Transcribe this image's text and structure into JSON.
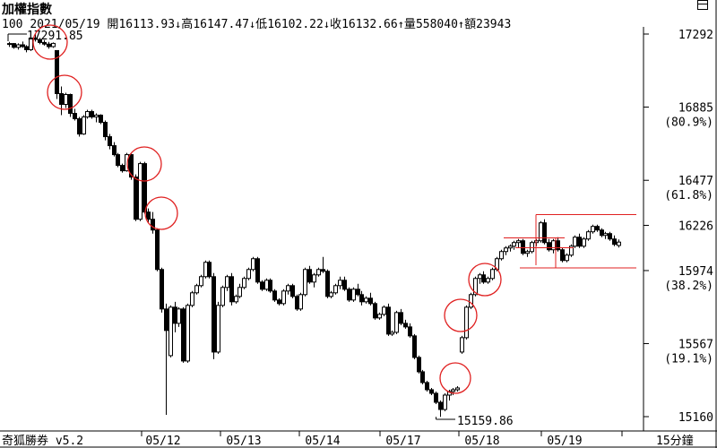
{
  "header": {
    "title": "加權指數",
    "code": "100",
    "date": "2021/05/19",
    "open_label": "開",
    "open_value": "16113.93",
    "high_label": "高",
    "high_value": "16147.47",
    "low_label": "低",
    "low_value": "16102.22",
    "close_label": "收",
    "close_value": "16132.66",
    "volume_label": "量",
    "volume_value": "558040",
    "amount_label": "額",
    "amount_value": "23943"
  },
  "footer": {
    "brand": "奇狐勝券 v5.2",
    "interval": "15分鐘"
  },
  "chart_data": {
    "type": "candlestick",
    "title": "加權指數",
    "ylim": [
      15160,
      17292
    ],
    "y_ticks": [
      {
        "value": 17292,
        "label": "17292",
        "pct": ""
      },
      {
        "value": 16885,
        "label": "16885",
        "pct": "(80.9%)"
      },
      {
        "value": 16477,
        "label": "16477",
        "pct": "(61.8%)"
      },
      {
        "value": 16226,
        "label": "16226",
        "pct": ""
      },
      {
        "value": 15974,
        "label": "15974",
        "pct": "(38.2%)"
      },
      {
        "value": 15567,
        "label": "15567",
        "pct": "(19.1%)"
      },
      {
        "value": 15160,
        "label": "15160",
        "pct": ""
      }
    ],
    "x_labels": [
      "05/12",
      "05/13",
      "05/14",
      "05/17",
      "05/18",
      "05/19"
    ],
    "annotations": [
      {
        "text": "17291.85",
        "type": "high"
      },
      {
        "text": "15159.86",
        "type": "low"
      }
    ],
    "resistance_band": [
      16226,
      15974
    ],
    "candles": [
      [
        17236,
        17248,
        17220,
        17239
      ],
      [
        17239,
        17242,
        17210,
        17218
      ],
      [
        17218,
        17240,
        17205,
        17232
      ],
      [
        17232,
        17250,
        17215,
        17222
      ],
      [
        17222,
        17230,
        17190,
        17205
      ],
      [
        17205,
        17275,
        17198,
        17270
      ],
      [
        17270,
        17292,
        17250,
        17262
      ],
      [
        17262,
        17270,
        17235,
        17245
      ],
      [
        17245,
        17258,
        17228,
        17236
      ],
      [
        17236,
        17248,
        17210,
        17222
      ],
      [
        17222,
        17245,
        17215,
        17240
      ],
      [
        17200,
        17198,
        16930,
        16960
      ],
      [
        16960,
        17000,
        16840,
        16900
      ],
      [
        16900,
        16965,
        16880,
        16955
      ],
      [
        16955,
        16960,
        16830,
        16850
      ],
      [
        16850,
        16875,
        16810,
        16820
      ],
      [
        16820,
        16830,
        16720,
        16735
      ],
      [
        16735,
        16840,
        16730,
        16830
      ],
      [
        16830,
        16870,
        16820,
        16860
      ],
      [
        16860,
        16870,
        16820,
        16830
      ],
      [
        16830,
        16850,
        16800,
        16840
      ],
      [
        16840,
        16845,
        16790,
        16800
      ],
      [
        16800,
        16810,
        16700,
        16720
      ],
      [
        16720,
        16735,
        16650,
        16670
      ],
      [
        16670,
        16690,
        16610,
        16620
      ],
      [
        16620,
        16630,
        16550,
        16560
      ],
      [
        16560,
        16570,
        16520,
        16530
      ],
      [
        16530,
        16630,
        16525,
        16620
      ],
      [
        16620,
        16625,
        16480,
        16495
      ],
      [
        16495,
        16510,
        16250,
        16260
      ],
      [
        16260,
        16580,
        16250,
        16570
      ],
      [
        16570,
        16580,
        16290,
        16300
      ],
      [
        16300,
        16320,
        16240,
        16260
      ],
      [
        16260,
        16300,
        16180,
        16200
      ],
      [
        16200,
        16210,
        15970,
        15980
      ],
      [
        15980,
        15990,
        15740,
        15760
      ],
      [
        15760,
        15790,
        15170,
        15640
      ],
      [
        15500,
        15780,
        15490,
        15770
      ],
      [
        15770,
        15800,
        15630,
        15680
      ],
      [
        15680,
        15770,
        15660,
        15760
      ],
      [
        15760,
        15770,
        15460,
        15470
      ],
      [
        15470,
        15790,
        15460,
        15780
      ],
      [
        15780,
        15860,
        15770,
        15850
      ],
      [
        15850,
        15900,
        15840,
        15890
      ],
      [
        15890,
        15950,
        15880,
        15940
      ],
      [
        15940,
        16030,
        15930,
        16020
      ],
      [
        16020,
        16030,
        15930,
        15940
      ],
      [
        15940,
        15960,
        15480,
        15520
      ],
      [
        15520,
        15800,
        15510,
        15780
      ],
      [
        15780,
        15890,
        15770,
        15880
      ],
      [
        15880,
        15950,
        15860,
        15940
      ],
      [
        15940,
        15960,
        15780,
        15800
      ],
      [
        15800,
        15840,
        15790,
        15830
      ],
      [
        15830,
        15900,
        15820,
        15880
      ],
      [
        15880,
        15940,
        15870,
        15930
      ],
      [
        15930,
        15990,
        15920,
        15980
      ],
      [
        15980,
        16050,
        15970,
        16040
      ],
      [
        16040,
        16050,
        15900,
        15910
      ],
      [
        15910,
        15920,
        15860,
        15870
      ],
      [
        15870,
        15930,
        15860,
        15920
      ],
      [
        15920,
        15930,
        15850,
        15860
      ],
      [
        15860,
        15870,
        15800,
        15810
      ],
      [
        15810,
        15820,
        15780,
        15790
      ],
      [
        15790,
        15870,
        15780,
        15860
      ],
      [
        15860,
        15900,
        15840,
        15890
      ],
      [
        15890,
        15900,
        15820,
        15830
      ],
      [
        15830,
        15840,
        15750,
        15760
      ],
      [
        15760,
        15850,
        15750,
        15840
      ],
      [
        15840,
        15990,
        15830,
        15980
      ],
      [
        15980,
        16000,
        15900,
        15910
      ],
      [
        15910,
        15960,
        15880,
        15950
      ],
      [
        15950,
        15990,
        15940,
        15980
      ],
      [
        15980,
        16050,
        15960,
        15970
      ],
      [
        15970,
        15980,
        15820,
        15830
      ],
      [
        15830,
        15860,
        15820,
        15850
      ],
      [
        15850,
        15900,
        15840,
        15890
      ],
      [
        15890,
        15940,
        15870,
        15920
      ],
      [
        15920,
        15940,
        15860,
        15870
      ],
      [
        15870,
        15880,
        15800,
        15810
      ],
      [
        15810,
        15880,
        15800,
        15870
      ],
      [
        15870,
        15900,
        15830,
        15840
      ],
      [
        15840,
        15860,
        15780,
        15800
      ],
      [
        15800,
        15830,
        15790,
        15820
      ],
      [
        15820,
        15850,
        15780,
        15790
      ],
      [
        15790,
        15800,
        15700,
        15710
      ],
      [
        15710,
        15740,
        15700,
        15730
      ],
      [
        15730,
        15780,
        15720,
        15770
      ],
      [
        15770,
        15790,
        15610,
        15620
      ],
      [
        15620,
        15640,
        15610,
        15630
      ],
      [
        15630,
        15750,
        15620,
        15740
      ],
      [
        15740,
        15760,
        15670,
        15680
      ],
      [
        15680,
        15700,
        15650,
        15660
      ],
      [
        15660,
        15680,
        15600,
        15610
      ],
      [
        15610,
        15620,
        15480,
        15490
      ],
      [
        15490,
        15500,
        15400,
        15410
      ],
      [
        15410,
        15420,
        15340,
        15350
      ],
      [
        15350,
        15360,
        15300,
        15310
      ],
      [
        15310,
        15320,
        15280,
        15290
      ],
      [
        15290,
        15300,
        15230,
        15240
      ],
      [
        15240,
        15250,
        15159,
        15200
      ],
      [
        15200,
        15290,
        15190,
        15280
      ],
      [
        15280,
        15310,
        15250,
        15300
      ],
      [
        15300,
        15320,
        15280,
        15310
      ],
      [
        15310,
        15330,
        15300,
        15320
      ],
      [
        15520,
        15610,
        15510,
        15600
      ],
      [
        15600,
        15780,
        15590,
        15770
      ],
      [
        15770,
        15850,
        15760,
        15840
      ],
      [
        15840,
        15940,
        15830,
        15930
      ],
      [
        15930,
        15960,
        15900,
        15950
      ],
      [
        15950,
        15970,
        15900,
        15910
      ],
      [
        15910,
        15940,
        15900,
        15930
      ],
      [
        15930,
        15990,
        15920,
        15980
      ],
      [
        15980,
        16050,
        15970,
        16040
      ],
      [
        16040,
        16090,
        16030,
        16080
      ],
      [
        16080,
        16110,
        16060,
        16100
      ],
      [
        16100,
        16120,
        16080,
        16110
      ],
      [
        16110,
        16140,
        16090,
        16130
      ],
      [
        16130,
        16150,
        16100,
        16140
      ],
      [
        16140,
        16150,
        16060,
        16070
      ],
      [
        16070,
        16090,
        16050,
        16080
      ],
      [
        16080,
        16140,
        16070,
        16130
      ],
      [
        16130,
        16150,
        16110,
        16140
      ],
      [
        16140,
        16250,
        16130,
        16240
      ],
      [
        16240,
        16260,
        16120,
        16130
      ],
      [
        16130,
        16150,
        16080,
        16090
      ],
      [
        16090,
        16150,
        16070,
        16140
      ],
      [
        16140,
        16160,
        16080,
        16090
      ],
      [
        16090,
        16100,
        16020,
        16030
      ],
      [
        16030,
        16070,
        16020,
        16060
      ],
      [
        16060,
        16120,
        16050,
        16110
      ],
      [
        16110,
        16170,
        16100,
        16160
      ],
      [
        16160,
        16180,
        16100,
        16110
      ],
      [
        16110,
        16160,
        16100,
        16150
      ],
      [
        16150,
        16200,
        16140,
        16190
      ],
      [
        16190,
        16230,
        16180,
        16220
      ],
      [
        16220,
        16230,
        16190,
        16200
      ],
      [
        16200,
        16210,
        16160,
        16170
      ],
      [
        16170,
        16190,
        16150,
        16180
      ],
      [
        16180,
        16190,
        16140,
        16150
      ],
      [
        16150,
        16170,
        16110,
        16120
      ],
      [
        16113.93,
        16147.47,
        16102.22,
        16132.66
      ]
    ]
  }
}
